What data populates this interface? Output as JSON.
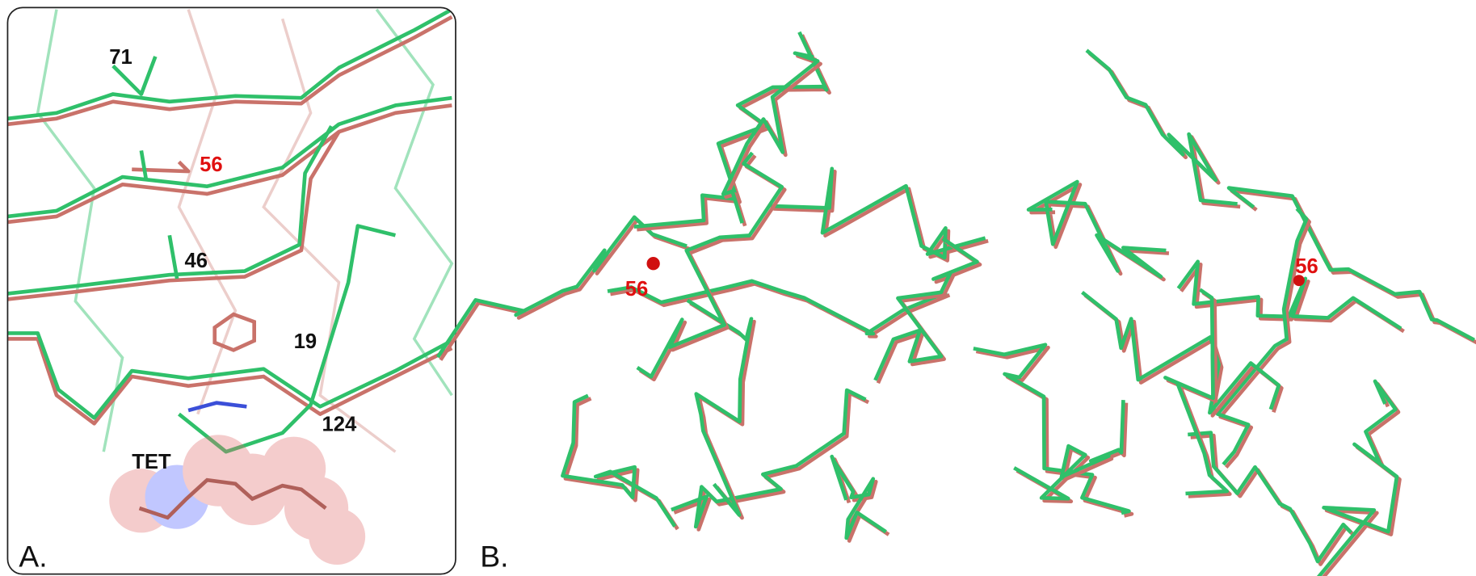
{
  "panels": [
    {
      "label": "A.",
      "residues": [
        {
          "text": "71",
          "color": "#111111"
        },
        {
          "text": "56",
          "color": "#e01010"
        },
        {
          "text": "46",
          "color": "#111111"
        },
        {
          "text": "19",
          "color": "#111111"
        },
        {
          "text": "124",
          "color": "#111111"
        }
      ],
      "ligand": "TET"
    },
    {
      "label": "B.",
      "residues": [
        {
          "text": "56",
          "color": "#e01010"
        },
        {
          "text": "56",
          "color": "#e01010"
        }
      ]
    }
  ]
}
